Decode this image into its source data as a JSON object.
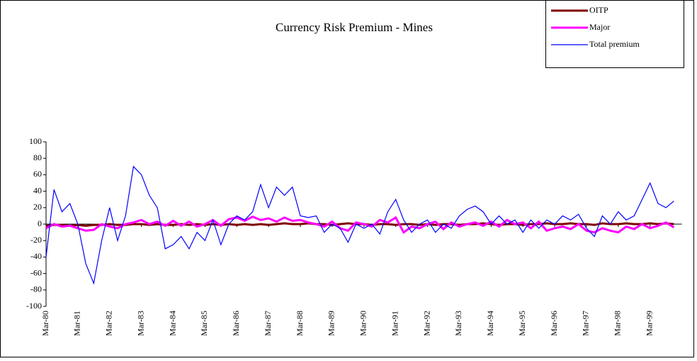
{
  "chart_data": {
    "type": "line",
    "title": "Currency Risk Premium - Mines",
    "categories": [
      "Mar-80",
      null,
      null,
      null,
      "Mar-81",
      null,
      null,
      null,
      "Mar-82",
      null,
      null,
      null,
      "Mar-83",
      null,
      null,
      null,
      "Mar-84",
      null,
      null,
      null,
      "Mar-85",
      null,
      null,
      null,
      "Mar-86",
      null,
      null,
      null,
      "Mar-87",
      null,
      null,
      null,
      "Mar-88",
      null,
      null,
      null,
      "Mar-89",
      null,
      null,
      null,
      "Mar-90",
      null,
      null,
      null,
      "Mar-91",
      null,
      null,
      null,
      "Mar-92",
      null,
      null,
      null,
      "Mar-93",
      null,
      null,
      null,
      "Mar-94",
      null,
      null,
      null,
      "Mar-95",
      null,
      null,
      null,
      "Mar-96",
      null,
      null,
      null,
      "Mar-97",
      null,
      null,
      null,
      "Mar-98",
      null,
      null,
      null,
      "Mar-99",
      null,
      null,
      null
    ],
    "series": [
      {
        "name": "OITP",
        "color": "#800000",
        "values": [
          -2,
          -1,
          -1,
          -2,
          -1,
          -2,
          -1,
          -1,
          0,
          -1,
          -1,
          0,
          0,
          -1,
          0,
          -1,
          -1,
          0,
          -1,
          0,
          -1,
          0,
          -1,
          0,
          -1,
          0,
          -1,
          0,
          -1,
          0,
          1,
          0,
          0,
          1,
          0,
          0,
          -1,
          0,
          1,
          0,
          0,
          -1,
          0,
          0,
          -1,
          0,
          0,
          -1,
          0,
          -1,
          0,
          0,
          -1,
          0,
          0,
          1,
          0,
          -1,
          0,
          0,
          -1,
          0,
          0,
          1,
          0,
          0,
          1,
          0,
          0,
          -1,
          1,
          0,
          0,
          1,
          0,
          0,
          1,
          0,
          1,
          0
        ]
      },
      {
        "name": "Major",
        "color": "#ff00ff",
        "values": [
          -5,
          0,
          -3,
          -2,
          -5,
          -8,
          -7,
          0,
          -3,
          -5,
          0,
          2,
          5,
          0,
          3,
          -2,
          4,
          -2,
          3,
          -3,
          0,
          5,
          -2,
          6,
          8,
          4,
          9,
          5,
          7,
          3,
          8,
          4,
          5,
          2,
          0,
          -3,
          3,
          -5,
          -8,
          2,
          0,
          -3,
          5,
          2,
          8,
          -10,
          -3,
          -5,
          0,
          3,
          -6,
          2,
          -3,
          0,
          2,
          -2,
          3,
          -3,
          5,
          0,
          2,
          -5,
          3,
          -8,
          -5,
          -3,
          -6,
          0,
          -8,
          -10,
          -5,
          -8,
          -10,
          -3,
          -6,
          0,
          -5,
          -2,
          2,
          -4
        ]
      },
      {
        "name": "Total premium",
        "color": "#0000ff",
        "values": [
          -40,
          42,
          15,
          25,
          0,
          -48,
          -72,
          -20,
          20,
          -20,
          10,
          70,
          60,
          35,
          20,
          -30,
          -25,
          -15,
          -30,
          -10,
          -20,
          5,
          -25,
          0,
          10,
          5,
          15,
          48,
          20,
          45,
          35,
          45,
          10,
          8,
          10,
          -10,
          0,
          -5,
          -22,
          0,
          -5,
          0,
          -12,
          15,
          30,
          5,
          -10,
          0,
          5,
          -10,
          0,
          -5,
          10,
          18,
          22,
          15,
          0,
          10,
          0,
          5,
          -10,
          5,
          -5,
          5,
          0,
          10,
          5,
          12,
          -5,
          -15,
          10,
          0,
          15,
          5,
          10,
          30,
          50,
          25,
          20,
          28
        ]
      }
    ],
    "ylim": [
      -100,
      100
    ],
    "yticks": [
      -100,
      -80,
      -60,
      -40,
      -20,
      0,
      20,
      40,
      60,
      80,
      100
    ]
  }
}
